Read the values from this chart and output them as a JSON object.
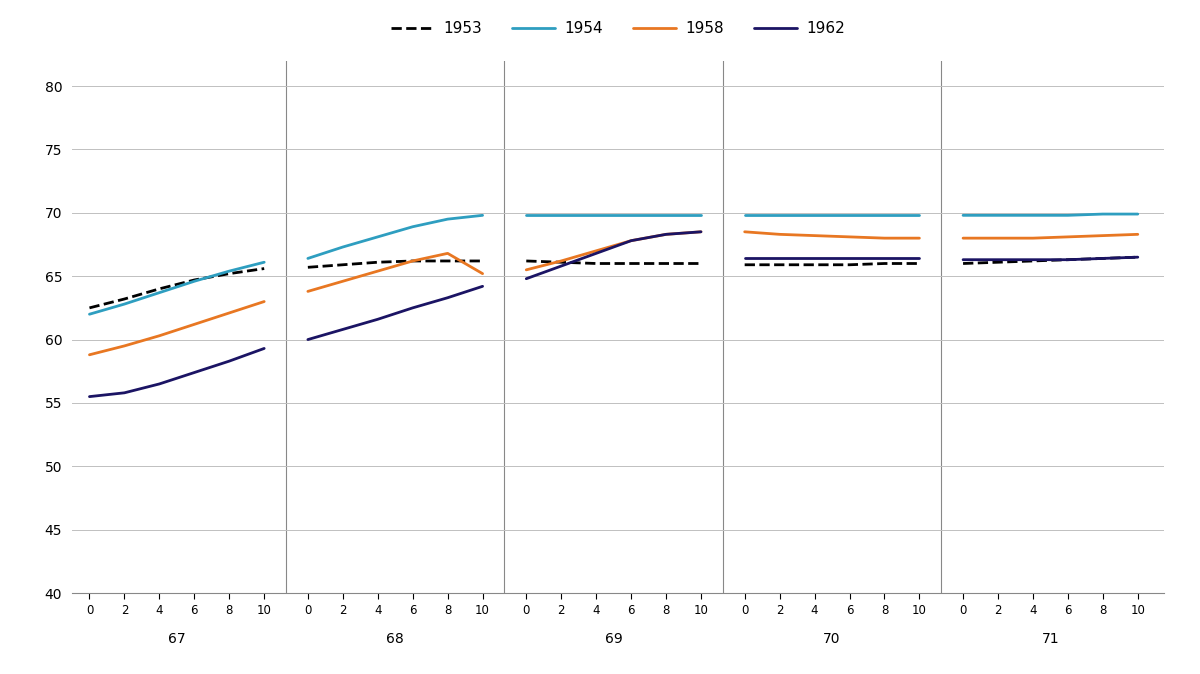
{
  "ylim": [
    40,
    82
  ],
  "yticks": [
    40,
    45,
    50,
    55,
    60,
    65,
    70,
    75,
    80
  ],
  "age_groups": [
    67,
    68,
    69,
    70,
    71
  ],
  "months": [
    0,
    2,
    4,
    6,
    8,
    10
  ],
  "series": {
    "1953": {
      "color": "#000000",
      "linestyle": "dashed",
      "linewidth": 2.0,
      "values": [
        62.5,
        63.2,
        64.0,
        64.7,
        65.2,
        65.6,
        65.7,
        65.9,
        66.1,
        66.2,
        66.2,
        66.2,
        66.2,
        66.1,
        66.0,
        66.0,
        66.0,
        66.0,
        65.9,
        65.9,
        65.9,
        65.9,
        66.0,
        66.0,
        66.0,
        66.1,
        66.2,
        66.3,
        66.4,
        66.5
      ]
    },
    "1954": {
      "color": "#2E9EC0",
      "linestyle": "solid",
      "linewidth": 2.0,
      "values": [
        62.0,
        62.8,
        63.7,
        64.6,
        65.4,
        66.1,
        66.4,
        67.3,
        68.1,
        68.9,
        69.5,
        69.8,
        69.8,
        69.8,
        69.8,
        69.8,
        69.8,
        69.8,
        69.8,
        69.8,
        69.8,
        69.8,
        69.8,
        69.8,
        69.8,
        69.8,
        69.8,
        69.8,
        69.9,
        69.9
      ]
    },
    "1958": {
      "color": "#E87722",
      "linestyle": "solid",
      "linewidth": 2.0,
      "values": [
        58.8,
        59.5,
        60.3,
        61.2,
        62.1,
        63.0,
        63.8,
        64.6,
        65.4,
        66.2,
        66.8,
        65.2,
        65.5,
        66.2,
        67.0,
        67.8,
        68.3,
        68.5,
        68.5,
        68.3,
        68.2,
        68.1,
        68.0,
        68.0,
        68.0,
        68.0,
        68.0,
        68.1,
        68.2,
        68.3
      ]
    },
    "1962": {
      "color": "#1B1464",
      "linestyle": "solid",
      "linewidth": 2.0,
      "values": [
        55.5,
        55.8,
        56.5,
        57.4,
        58.3,
        59.3,
        60.0,
        60.8,
        61.6,
        62.5,
        63.3,
        64.2,
        64.8,
        65.8,
        66.8,
        67.8,
        68.3,
        68.5,
        66.4,
        66.4,
        66.4,
        66.4,
        66.4,
        66.4,
        66.3,
        66.3,
        66.3,
        66.3,
        66.4,
        66.5
      ]
    }
  },
  "legend_order": [
    "1953",
    "1954",
    "1958",
    "1962"
  ],
  "grid_color": "#C0C0C0",
  "background_color": "#FFFFFF",
  "spine_color": "#888888"
}
